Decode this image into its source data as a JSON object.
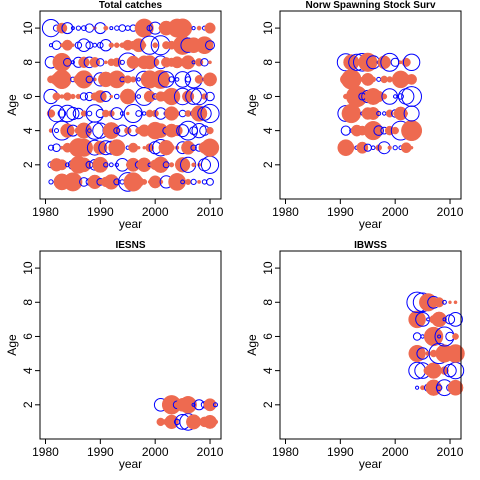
{
  "colors": {
    "positive": "#ee6a50",
    "negative": "#0000ff",
    "frame": "#000000"
  },
  "chart_data": [
    {
      "type": "scatter",
      "title": "Total catches",
      "xlabel": "year",
      "ylabel": "Age",
      "xlim": [
        1979,
        2012
      ],
      "ylim": [
        0,
        11
      ],
      "xticks": [
        1980,
        1990,
        2000,
        2010
      ],
      "yticks": [
        2,
        4,
        6,
        8,
        10
      ],
      "ages": [
        1,
        2,
        3,
        4,
        5,
        6,
        7,
        8,
        9,
        10
      ],
      "years": [
        1981,
        2010
      ],
      "encoding": "bubble size = residual magnitude; filled = positive, open = negative"
    },
    {
      "type": "scatter",
      "title": "Norw Spawning Stock Surv",
      "xlabel": "year",
      "ylabel": "Age",
      "xlim": [
        1979,
        2012
      ],
      "ylim": [
        0,
        11
      ],
      "xticks": [
        1980,
        1990,
        2000,
        2010
      ],
      "yticks": [
        2,
        4,
        6,
        8,
        10
      ],
      "ages": [
        3,
        4,
        5,
        6,
        7,
        8
      ],
      "years": [
        1991,
        2003
      ],
      "encoding": "bubble size = residual magnitude; filled = positive, open = negative"
    },
    {
      "type": "scatter",
      "title": "IESNS",
      "xlabel": "year",
      "ylabel": "Age",
      "xlim": [
        1979,
        2012
      ],
      "ylim": [
        0,
        11
      ],
      "xticks": [
        1980,
        1990,
        2000,
        2010
      ],
      "yticks": [
        2,
        4,
        6,
        8,
        10
      ],
      "ages": [
        1,
        2
      ],
      "years": [
        2001,
        2011
      ],
      "encoding": "bubble size = residual magnitude; filled = positive, open = negative"
    },
    {
      "type": "scatter",
      "title": "IBWSS",
      "xlabel": "year",
      "ylabel": "Age",
      "xlim": [
        1979,
        2012
      ],
      "ylim": [
        0,
        11
      ],
      "xticks": [
        1980,
        1990,
        2000,
        2010
      ],
      "yticks": [
        2,
        4,
        6,
        8,
        10
      ],
      "ages": [
        3,
        4,
        5,
        6,
        7,
        8
      ],
      "years": [
        2004,
        2011
      ],
      "encoding": "bubble size = residual magnitude; filled = positive, open = negative"
    }
  ]
}
